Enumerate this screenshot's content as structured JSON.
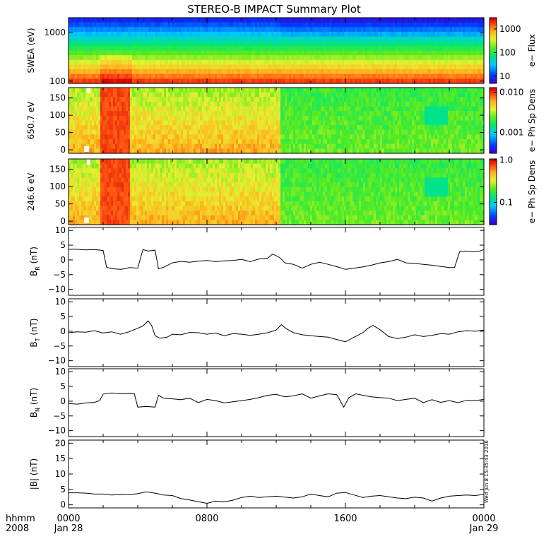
{
  "title": "STEREO-B IMPACT Summary Plot",
  "timestamp": "Wed Jun  8 15:35:43 2016",
  "time_axis": {
    "label_line1": "hhmm",
    "label_line2": "2008",
    "ticks": [
      {
        "hours": 0,
        "label": "0000",
        "sub": "Jan 28"
      },
      {
        "hours": 8,
        "label": "0800",
        "sub": ""
      },
      {
        "hours": 16,
        "label": "1600",
        "sub": ""
      },
      {
        "hours": 24,
        "label": "0000",
        "sub": "Jan 29"
      }
    ],
    "range_hours": [
      0,
      24
    ]
  },
  "chart_data": [
    {
      "type": "heatmap",
      "name": "swea",
      "ylabel": "SWEA (eV)",
      "yscale": "log",
      "ylim": [
        90,
        2000
      ],
      "yticks": [
        {
          "v": 100,
          "label": "100"
        },
        {
          "v": 1000,
          "label": "1000"
        }
      ],
      "colorbar": {
        "label": "e− Flux",
        "scale": "log",
        "range": [
          5,
          3000
        ],
        "ticks": [
          {
            "v": 10,
            "label": "10"
          },
          {
            "v": 100,
            "label": "100"
          },
          {
            "v": 1000,
            "label": "1000"
          }
        ]
      },
      "description_values": {
        "enhanced_intervals_hours": [
          [
            1.8,
            3.6
          ]
        ]
      }
    },
    {
      "type": "heatmap",
      "name": "pad650",
      "ylabel": "650.7 eV",
      "ylim": [
        -10,
        180
      ],
      "yticks": [
        {
          "v": 0,
          "label": "0"
        },
        {
          "v": 50,
          "label": "50"
        },
        {
          "v": 100,
          "label": "100"
        },
        {
          "v": 150,
          "label": "150"
        }
      ],
      "colorbar": {
        "label": "e− Ph Sp Dens",
        "scale": "log",
        "range": [
          0.0003,
          0.013
        ],
        "ticks": [
          {
            "v": 0.001,
            "label": "0.001"
          },
          {
            "v": 0.01,
            "label": "0.010"
          }
        ]
      },
      "description_values": {
        "strong_interval_hours": [
          1.8,
          3.5
        ],
        "transition_hour": 12.2
      }
    },
    {
      "type": "heatmap",
      "name": "pad246",
      "ylabel": "246.6 eV",
      "ylim": [
        -10,
        180
      ],
      "yticks": [
        {
          "v": 0,
          "label": "0"
        },
        {
          "v": 50,
          "label": "50"
        },
        {
          "v": 100,
          "label": "100"
        },
        {
          "v": 150,
          "label": "150"
        }
      ],
      "colorbar": {
        "label": "e− Ph Sp Dens",
        "scale": "log",
        "range": [
          0.03,
          1.05
        ],
        "ticks": [
          {
            "v": 0.1,
            "label": "0.1"
          },
          {
            "v": 1.0,
            "label": "1.0"
          }
        ]
      },
      "description_values": {
        "strong_interval_hours": [
          1.8,
          3.5
        ],
        "transition_hour": 12.2
      }
    },
    {
      "type": "line",
      "name": "br",
      "ylabel_main": "B",
      "ylabel_sub": "R",
      "ylabel_unit": " (nT)",
      "ylim": [
        -12,
        11
      ],
      "yticks": [
        {
          "v": -10,
          "label": "−10"
        },
        {
          "v": -5,
          "label": "−5"
        },
        {
          "v": 0,
          "label": "0"
        },
        {
          "v": 5,
          "label": "5"
        },
        {
          "v": 10,
          "label": "10"
        }
      ],
      "x": [
        0,
        0.5,
        1,
        1.5,
        2.0,
        2.2,
        2.5,
        3.0,
        3.3,
        3.5,
        4.0,
        4.3,
        4.5,
        4.6,
        5.0,
        5.2,
        5.5,
        6.0,
        6.5,
        7.0,
        7.5,
        8.0,
        8.5,
        9.0,
        9.5,
        10.0,
        10.5,
        11.0,
        11.5,
        11.8,
        12.2,
        12.5,
        13.0,
        13.5,
        14.0,
        14.5,
        15.0,
        15.5,
        16.0,
        16.5,
        17.0,
        17.5,
        18.0,
        18.5,
        19.0,
        19.5,
        20.0,
        20.5,
        21.0,
        21.5,
        22.0,
        22.3,
        22.6,
        22.9,
        23.3,
        23.7,
        24.0
      ],
      "y": [
        3.6,
        3.6,
        3.4,
        3.5,
        3.2,
        -2.5,
        -3.0,
        -3.2,
        -3.0,
        -2.6,
        -2.8,
        3.5,
        3.2,
        3.0,
        3.3,
        -3.0,
        -2.5,
        -1.0,
        -0.5,
        -0.8,
        -0.4,
        -0.2,
        -0.6,
        -0.3,
        -0.2,
        0.2,
        -0.6,
        0.3,
        0.6,
        2.0,
        0.8,
        -1.0,
        -1.5,
        -2.8,
        -1.5,
        -0.8,
        -1.5,
        -2.3,
        -3.2,
        -2.8,
        -2.4,
        -1.8,
        -1.0,
        -0.6,
        0.2,
        -1.0,
        -1.2,
        -1.5,
        -1.8,
        -2.2,
        -2.6,
        -2.6,
        2.8,
        3.0,
        2.8,
        2.9,
        3.5
      ]
    },
    {
      "type": "line",
      "name": "bt",
      "ylabel_main": "B",
      "ylabel_sub": "T",
      "ylabel_unit": " (nT)",
      "ylim": [
        -12,
        11
      ],
      "yticks": [
        {
          "v": -10,
          "label": "−10"
        },
        {
          "v": -5,
          "label": "−5"
        },
        {
          "v": 0,
          "label": "0"
        },
        {
          "v": 5,
          "label": "5"
        },
        {
          "v": 10,
          "label": "10"
        }
      ],
      "x": [
        0,
        0.5,
        1,
        1.5,
        2,
        2.5,
        3,
        3.5,
        4,
        4.3,
        4.6,
        4.8,
        5,
        5.3,
        5.7,
        6,
        6.5,
        7,
        7.5,
        8,
        8.5,
        9,
        9.5,
        10,
        10.5,
        11,
        11.5,
        12,
        12.3,
        12.6,
        13,
        13.5,
        14,
        14.5,
        15,
        15.5,
        16,
        16.5,
        17,
        17.3,
        17.6,
        18,
        18.5,
        19,
        19.5,
        20,
        20.5,
        21,
        21.5,
        22,
        22.5,
        23,
        23.5,
        24
      ],
      "y": [
        -0.5,
        -0.2,
        -0.3,
        0.2,
        -0.6,
        -0.2,
        -1.0,
        -0.2,
        1.0,
        1.8,
        3.5,
        2.0,
        -1.5,
        -2.4,
        -2.0,
        -1.0,
        -1.2,
        -0.4,
        -0.5,
        -1.0,
        -0.6,
        -1.5,
        -0.8,
        -1.0,
        -1.4,
        -1.0,
        -0.5,
        0.4,
        2.2,
        0.8,
        -0.5,
        -1.2,
        -1.5,
        -1.8,
        -2.0,
        -2.8,
        -3.6,
        -2.0,
        -0.5,
        1.0,
        2.0,
        0.5,
        -1.8,
        -2.5,
        -2.0,
        -1.2,
        -1.8,
        -1.4,
        -0.8,
        -1.0,
        -0.2,
        0.2,
        0.0,
        0.4
      ]
    },
    {
      "type": "line",
      "name": "bn",
      "ylabel_main": "B",
      "ylabel_sub": "N",
      "ylabel_unit": " (nT)",
      "ylim": [
        -12,
        11
      ],
      "yticks": [
        {
          "v": -10,
          "label": "−10"
        },
        {
          "v": -5,
          "label": "−5"
        },
        {
          "v": 0,
          "label": "0"
        },
        {
          "v": 5,
          "label": "5"
        },
        {
          "v": 10,
          "label": "10"
        }
      ],
      "x": [
        0,
        0.5,
        1,
        1.5,
        1.8,
        2.0,
        2.5,
        3.0,
        3.5,
        3.8,
        4.0,
        4.5,
        5.0,
        5.2,
        5.5,
        6.0,
        6.5,
        7.0,
        7.5,
        8.0,
        8.5,
        9.0,
        9.5,
        10.0,
        10.5,
        11.0,
        11.5,
        12.0,
        12.5,
        13.0,
        13.5,
        14.0,
        14.5,
        15.0,
        15.5,
        15.9,
        16.2,
        16.6,
        17.0,
        17.5,
        18.0,
        18.5,
        19.0,
        19.5,
        20.0,
        20.5,
        21.0,
        21.5,
        22.0,
        22.5,
        23.0,
        23.5,
        24.0
      ],
      "y": [
        -0.8,
        -1.0,
        -0.6,
        -0.4,
        0.2,
        2.4,
        2.8,
        2.5,
        2.6,
        2.5,
        -2.0,
        -1.8,
        -2.0,
        2.0,
        1.0,
        0.8,
        0.5,
        1.0,
        -0.5,
        0.6,
        0.2,
        -0.6,
        -0.2,
        0.2,
        0.6,
        1.2,
        2.0,
        2.3,
        1.5,
        1.8,
        2.5,
        1.0,
        1.8,
        2.5,
        2.2,
        -2.0,
        1.2,
        2.5,
        2.0,
        1.5,
        1.2,
        1.0,
        0.2,
        0.6,
        1.0,
        -0.5,
        0.5,
        -0.4,
        0.2,
        -0.5,
        0.3,
        0.2,
        0.6
      ]
    },
    {
      "type": "line",
      "name": "bmag",
      "ylabel_main": "|B|",
      "ylabel_sub": "",
      "ylabel_unit": " (nT)",
      "ylim": [
        -1,
        21
      ],
      "yticks": [
        {
          "v": 0,
          "label": "0"
        },
        {
          "v": 5,
          "label": "5"
        },
        {
          "v": 10,
          "label": "10"
        },
        {
          "v": 15,
          "label": "15"
        },
        {
          "v": 20,
          "label": "20"
        }
      ],
      "x": [
        0,
        0.5,
        1,
        1.5,
        2,
        2.5,
        3,
        3.5,
        4,
        4.5,
        5,
        5.5,
        6,
        6.5,
        7,
        7.5,
        8,
        8.5,
        9,
        9.5,
        10,
        10.5,
        11,
        11.5,
        12,
        12.5,
        13,
        13.5,
        14,
        14.5,
        15,
        15.5,
        16,
        16.5,
        17,
        17.5,
        18,
        18.5,
        19,
        19.5,
        20,
        20.5,
        21,
        21.5,
        22,
        22.5,
        23,
        23.5,
        24
      ],
      "y": [
        3.9,
        3.9,
        3.8,
        3.5,
        3.5,
        3.2,
        3.4,
        3.3,
        3.6,
        4.2,
        3.8,
        3.2,
        3.0,
        2.0,
        1.6,
        1.0,
        0.5,
        1.2,
        1.0,
        1.5,
        2.4,
        2.8,
        2.4,
        2.6,
        2.8,
        2.5,
        2.2,
        2.6,
        3.5,
        3.0,
        2.6,
        3.8,
        4.0,
        3.2,
        2.4,
        2.8,
        3.0,
        2.6,
        2.2,
        2.0,
        2.5,
        2.2,
        1.2,
        2.2,
        2.8,
        3.0,
        3.2,
        3.0,
        3.4
      ]
    }
  ]
}
